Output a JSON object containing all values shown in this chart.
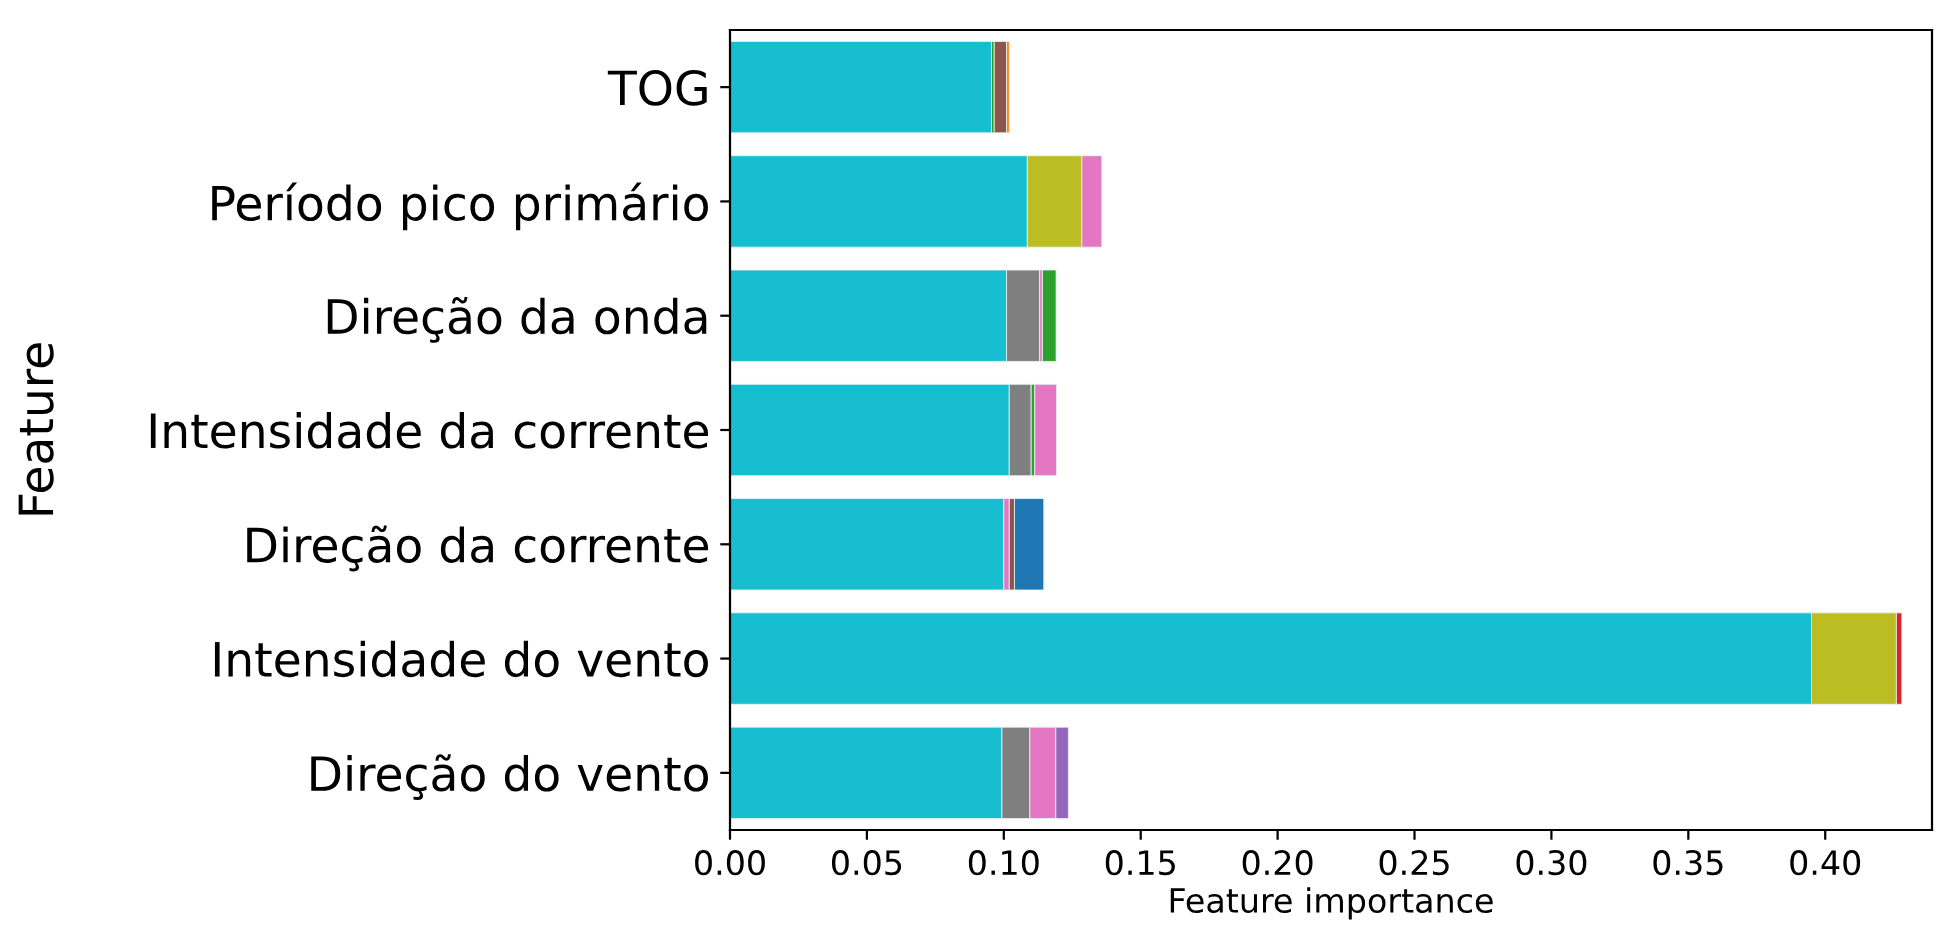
{
  "chart_data": {
    "type": "bar",
    "orientation": "horizontal",
    "stacked": true,
    "xlabel": "Feature importance",
    "ylabel": "Feature",
    "categories": [
      "TOG",
      "Período pico primário",
      "Direção da onda",
      "Intensidade da corrente",
      "Direção da corrente",
      "Intensidade do vento",
      "Direção do vento"
    ],
    "series": [
      {
        "colors": [
          "#17becf",
          "#17becf",
          "#17becf",
          "#17becf",
          "#17becf",
          "#17becf",
          "#17becf"
        ],
        "values": [
          0.0955,
          0.1086,
          0.101,
          0.102,
          0.1,
          0.395,
          0.0993
        ]
      },
      {
        "colors": [
          "#2ca02c",
          "#bcbd22",
          "#7f7f7f",
          "#7f7f7f",
          "#e377c2",
          "#bcbd22",
          "#7f7f7f"
        ],
        "values": [
          0.001,
          0.0199,
          0.0121,
          0.008,
          0.002,
          0.031,
          0.0102
        ]
      },
      {
        "colors": [
          "#8c564b",
          "#e377c2",
          "#e377c2",
          "#2ca02c",
          "#8c564b",
          "#d62728",
          "#e377c2"
        ],
        "values": [
          0.0045,
          0.0073,
          0.001,
          0.0013,
          0.0019,
          0.002,
          0.0095
        ]
      },
      {
        "colors": [
          "#ff7f0e",
          null,
          "#2ca02c",
          "#e377c2",
          "#1f77b4",
          null,
          "#9467bd"
        ],
        "values": [
          0.001,
          null,
          0.005,
          0.008,
          0.0107,
          null,
          0.0046
        ]
      }
    ],
    "xlim": [
      0,
      0.439
    ],
    "xticks": [
      {
        "value": 0,
        "label": "0.00"
      },
      {
        "value": 0.05,
        "label": "0.05"
      },
      {
        "value": 0.1,
        "label": "0.10"
      },
      {
        "value": 0.15,
        "label": "0.15"
      },
      {
        "value": 0.2,
        "label": "0.20"
      },
      {
        "value": 0.25,
        "label": "0.25"
      },
      {
        "value": 0.3,
        "label": "0.30"
      },
      {
        "value": 0.35,
        "label": "0.35"
      },
      {
        "value": 0.4,
        "label": "0.40"
      }
    ],
    "grid": false,
    "legend": false
  }
}
